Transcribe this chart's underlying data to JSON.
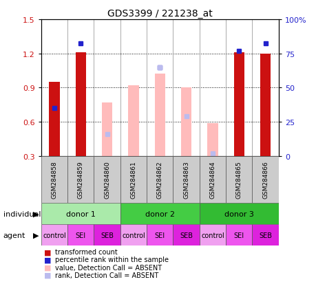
{
  "title": "GDS3399 / 221238_at",
  "samples": [
    "GSM284858",
    "GSM284859",
    "GSM284860",
    "GSM284861",
    "GSM284862",
    "GSM284863",
    "GSM284864",
    "GSM284865",
    "GSM284866"
  ],
  "red_bars": [
    0.95,
    1.21,
    null,
    null,
    null,
    null,
    null,
    1.21,
    1.2
  ],
  "blue_squares_left": [
    0.72,
    1.29,
    null,
    null,
    1.08,
    null,
    null,
    1.22,
    1.29
  ],
  "pink_bars": [
    null,
    null,
    0.77,
    0.92,
    1.02,
    0.9,
    0.59,
    null,
    null
  ],
  "lightblue_squares_left": [
    null,
    null,
    0.49,
    null,
    1.08,
    0.65,
    0.32,
    null,
    null
  ],
  "ylim_left": [
    0.3,
    1.5
  ],
  "ylim_right": [
    0,
    100
  ],
  "yticks_left": [
    0.3,
    0.6,
    0.9,
    1.2,
    1.5
  ],
  "yticks_right": [
    0,
    25,
    50,
    75,
    100
  ],
  "ytick_labels_right": [
    "0",
    "25",
    "50",
    "75",
    "100%"
  ],
  "donors": [
    {
      "label": "donor 1",
      "start": 0,
      "end": 3,
      "color": "#aaeaaa"
    },
    {
      "label": "donor 2",
      "start": 3,
      "end": 6,
      "color": "#44cc44"
    },
    {
      "label": "donor 3",
      "start": 6,
      "end": 9,
      "color": "#33bb33"
    }
  ],
  "agents": [
    "control",
    "SEI",
    "SEB",
    "control",
    "SEI",
    "SEB",
    "control",
    "SEI",
    "SEB"
  ],
  "agent_colors": [
    "#f0a0f0",
    "#ee55ee",
    "#dd22dd",
    "#f0a0f0",
    "#ee55ee",
    "#dd22dd",
    "#f0a0f0",
    "#ee55ee",
    "#dd22dd"
  ],
  "red_color": "#cc1111",
  "blue_color": "#2222cc",
  "pink_color": "#ffbbbb",
  "lightblue_color": "#bbbbee",
  "sample_box_color": "#cccccc",
  "bar_width": 0.4
}
